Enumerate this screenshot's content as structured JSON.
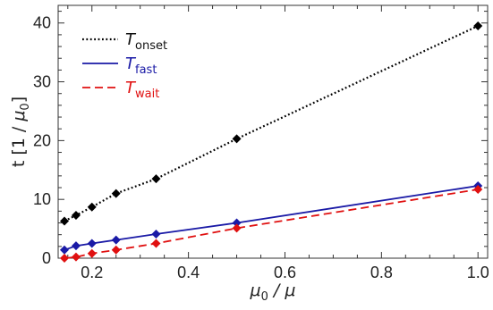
{
  "chart_data": {
    "type": "line",
    "xlabel": {
      "base": "μ",
      "sub": "0",
      "rest": " / μ"
    },
    "ylabel": {
      "pre": "t [1 / ",
      "base": "μ",
      "sub": "0",
      "post": "]"
    },
    "xlim": [
      0.13,
      1.02
    ],
    "ylim": [
      0,
      43
    ],
    "xticks": [
      "0.2",
      "0.4",
      "0.6",
      "0.8",
      "1.0"
    ],
    "yticks": [
      "0",
      "10",
      "20",
      "30",
      "40"
    ],
    "legend_position": "top-left",
    "grid": false,
    "series": [
      {
        "name": "T",
        "subscript": "onset",
        "color": "#000000",
        "line": "dotted",
        "x": [
          0.143,
          0.167,
          0.2,
          0.25,
          0.333,
          0.5,
          1.0
        ],
        "y": [
          6.3,
          7.3,
          8.7,
          11.0,
          13.5,
          20.3,
          39.5
        ]
      },
      {
        "name": "T",
        "subscript": "fast",
        "color": "#1a1aa6",
        "line": "solid",
        "x": [
          0.143,
          0.167,
          0.2,
          0.25,
          0.333,
          0.5,
          1.0
        ],
        "y": [
          1.4,
          2.1,
          2.5,
          3.1,
          4.1,
          6.0,
          12.3
        ]
      },
      {
        "name": "T",
        "subscript": "wait",
        "color": "#e01010",
        "line": "dashed",
        "x": [
          0.143,
          0.167,
          0.2,
          0.25,
          0.333,
          0.5,
          1.0
        ],
        "y": [
          0.0,
          0.2,
          0.8,
          1.4,
          2.5,
          5.1,
          11.7
        ]
      }
    ]
  }
}
